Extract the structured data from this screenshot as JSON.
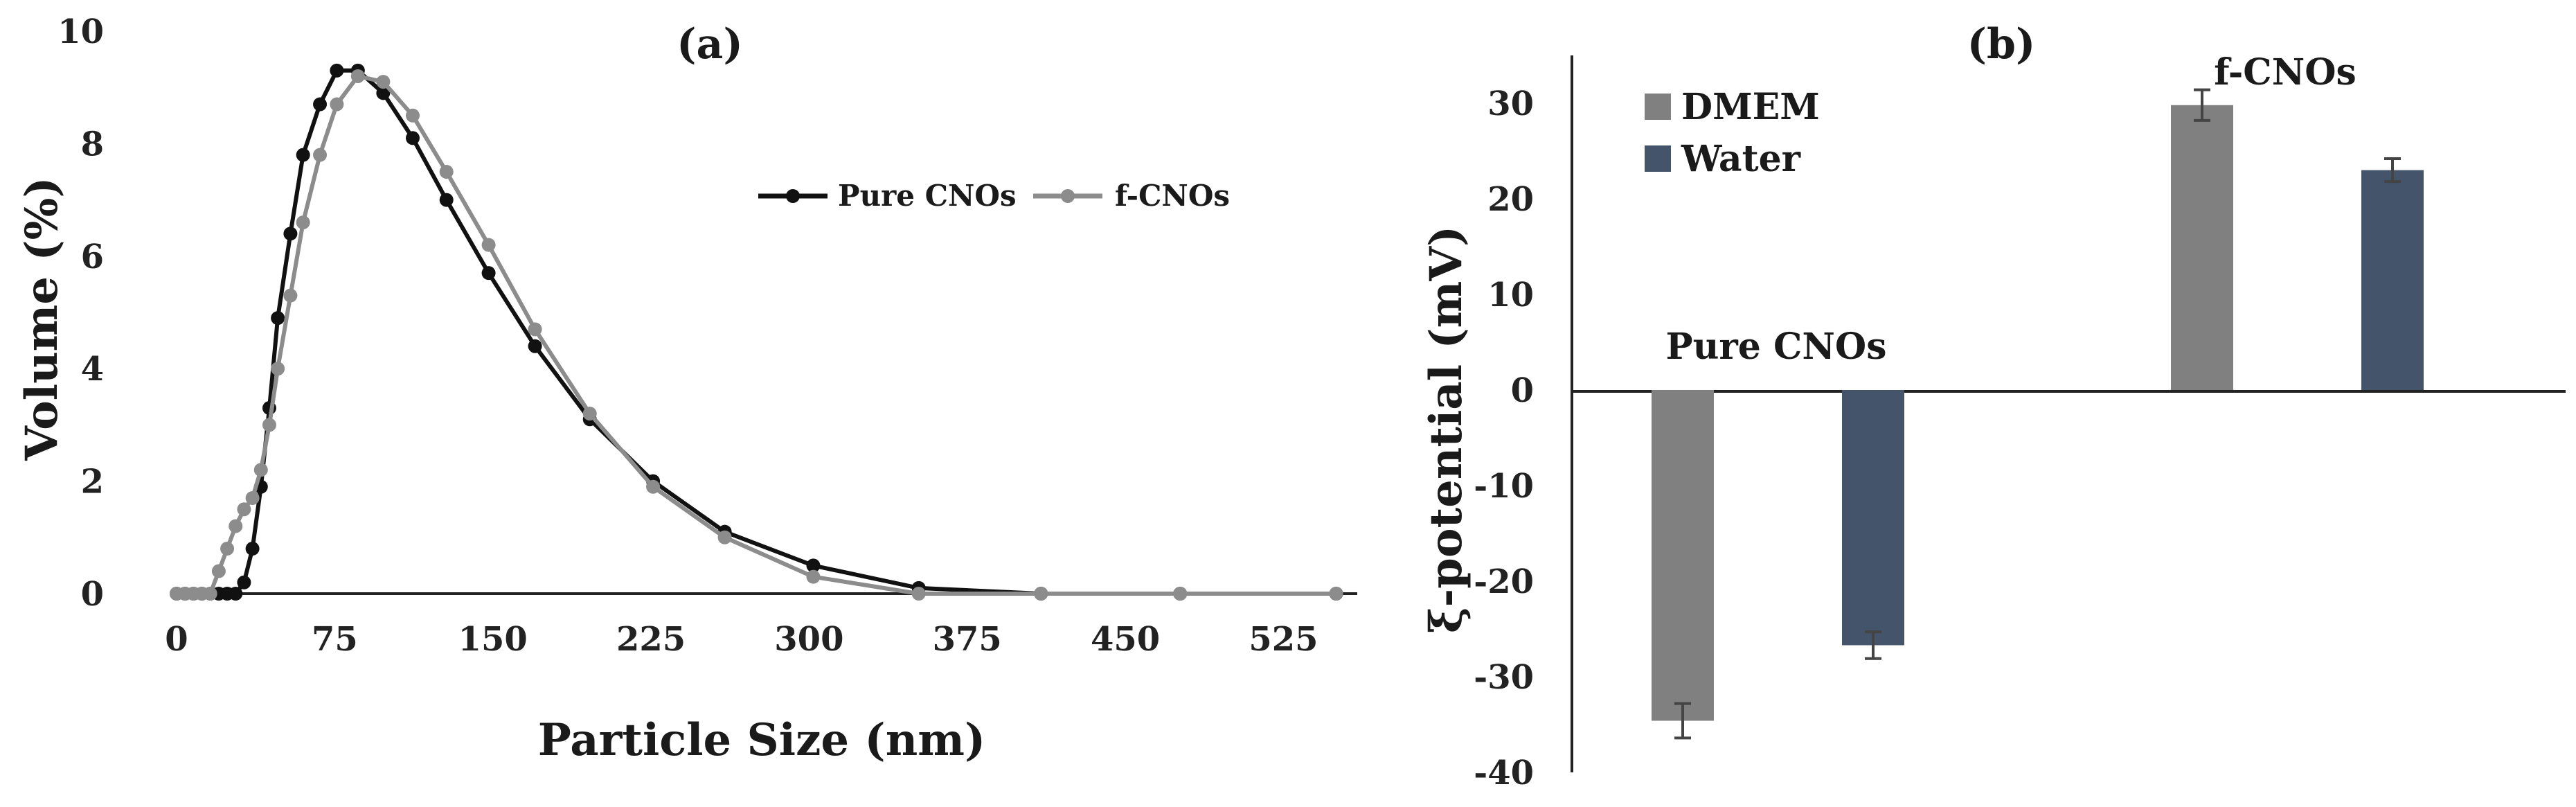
{
  "chart_data": [
    {
      "type": "line",
      "panel_label": "(a)",
      "xlabel": "Particle Size (nm)",
      "ylabel": "Volume  (%)",
      "xlim": [
        0,
        560
      ],
      "ylim": [
        0,
        10
      ],
      "xticks": [
        "0",
        "75",
        "150",
        "225",
        "300",
        "375",
        "450",
        "525"
      ],
      "yticks": [
        "0",
        "2",
        "4",
        "6",
        "8",
        "10"
      ],
      "legend_position": "top-right",
      "series": [
        {
          "name": "Pure CNOs",
          "color": "#111111",
          "x": [
            0,
            4,
            8,
            12,
            16,
            20,
            24,
            28,
            32,
            36,
            40,
            44,
            48,
            54,
            60,
            68,
            76,
            86,
            98,
            112,
            128,
            148,
            170,
            196,
            226,
            260,
            302,
            352,
            410,
            476,
            550
          ],
          "y": [
            0,
            0,
            0,
            0,
            0,
            0,
            0,
            0,
            0.2,
            0.8,
            1.9,
            3.3,
            4.9,
            6.4,
            7.8,
            8.7,
            9.3,
            9.3,
            8.9,
            8.1,
            7.0,
            5.7,
            4.4,
            3.1,
            2.0,
            1.1,
            0.5,
            0.1,
            0,
            0,
            0
          ]
        },
        {
          "name": "f-CNOs",
          "color": "#8c8c8c",
          "x": [
            0,
            4,
            8,
            12,
            16,
            20,
            24,
            28,
            32,
            36,
            40,
            44,
            48,
            54,
            60,
            68,
            76,
            86,
            98,
            112,
            128,
            148,
            170,
            196,
            226,
            260,
            302,
            352,
            410,
            476,
            550
          ],
          "y": [
            0,
            0,
            0,
            0,
            0,
            0.4,
            0.8,
            1.2,
            1.5,
            1.7,
            2.2,
            3.0,
            4.0,
            5.3,
            6.6,
            7.8,
            8.7,
            9.2,
            9.1,
            8.5,
            7.5,
            6.2,
            4.7,
            3.2,
            1.9,
            1.0,
            0.3,
            0,
            0,
            0,
            0
          ]
        }
      ]
    },
    {
      "type": "bar",
      "panel_label": "(b)",
      "ylabel": "ξ-potential (mV)",
      "ylim": [
        -40,
        35
      ],
      "yticks": [
        "-40",
        "-30",
        "-20",
        "-10",
        "0",
        "10",
        "20",
        "30"
      ],
      "categories": [
        "Pure CNOs",
        "f-CNOs"
      ],
      "legend_position": "top-left",
      "series": [
        {
          "name": "DMEM",
          "color": "#808080",
          "values": [
            -34.6,
            29.8
          ],
          "errors": [
            1.8,
            1.6
          ]
        },
        {
          "name": "Water",
          "color": "#44546a",
          "values": [
            -26.7,
            23.0
          ],
          "errors": [
            1.4,
            1.2
          ]
        }
      ]
    }
  ]
}
